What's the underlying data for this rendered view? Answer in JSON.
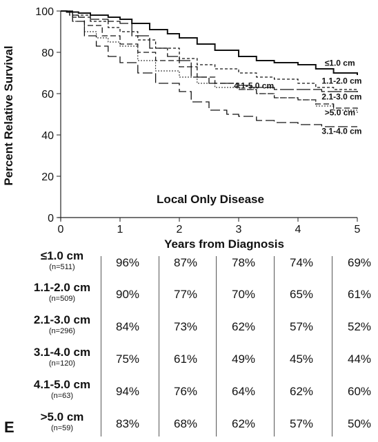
{
  "chart_data": {
    "type": "line",
    "xlabel": "Years from Diagnosis",
    "ylabel": "Percent Relative Survival",
    "annotation": "Local Only Disease",
    "panel_label": "E",
    "xlim": [
      0,
      5
    ],
    "ylim": [
      0,
      100
    ],
    "x_ticks": [
      0,
      1,
      2,
      3,
      4,
      5
    ],
    "y_ticks": [
      0,
      20,
      40,
      60,
      80,
      100
    ],
    "x_tick_labels": [
      "0",
      "1",
      "2",
      "3",
      "4",
      "5"
    ],
    "y_tick_labels": [
      "0",
      "20",
      "40",
      "60",
      "80",
      "100"
    ],
    "series": [
      {
        "name": "≤1.0 cm",
        "dash": "solid",
        "width": 2,
        "points": [
          [
            0,
            100
          ],
          [
            0.1,
            99.5
          ],
          [
            0.3,
            99
          ],
          [
            0.5,
            98
          ],
          [
            0.8,
            97
          ],
          [
            1,
            96
          ],
          [
            1.2,
            94
          ],
          [
            1.5,
            91
          ],
          [
            1.8,
            89
          ],
          [
            2,
            87
          ],
          [
            2.3,
            84
          ],
          [
            2.6,
            81
          ],
          [
            3,
            78
          ],
          [
            3.3,
            76
          ],
          [
            3.6,
            75
          ],
          [
            4,
            74
          ],
          [
            4.3,
            72
          ],
          [
            4.6,
            70
          ],
          [
            5,
            69
          ]
        ]
      },
      {
        "name": "1.1-2.0 cm",
        "dash": "4,3",
        "width": 1.3,
        "points": [
          [
            0,
            100
          ],
          [
            0.2,
            98
          ],
          [
            0.5,
            95
          ],
          [
            0.8,
            92
          ],
          [
            1,
            90
          ],
          [
            1.3,
            86
          ],
          [
            1.6,
            82
          ],
          [
            2,
            77
          ],
          [
            2.3,
            74
          ],
          [
            2.6,
            72
          ],
          [
            3,
            70
          ],
          [
            3.3,
            68
          ],
          [
            3.6,
            67
          ],
          [
            4,
            65
          ],
          [
            4.3,
            63
          ],
          [
            4.6,
            62
          ],
          [
            5,
            61
          ]
        ]
      },
      {
        "name": "2.1-3.0 cm",
        "dash": "8,4",
        "width": 1.3,
        "points": [
          [
            0,
            100
          ],
          [
            0.2,
            97
          ],
          [
            0.4,
            93
          ],
          [
            0.7,
            88
          ],
          [
            1,
            84
          ],
          [
            1.3,
            80
          ],
          [
            1.6,
            76
          ],
          [
            2,
            73
          ],
          [
            2.3,
            68
          ],
          [
            2.6,
            65
          ],
          [
            3,
            62
          ],
          [
            3.3,
            60
          ],
          [
            3.6,
            58
          ],
          [
            4,
            57
          ],
          [
            4.3,
            55
          ],
          [
            4.6,
            53
          ],
          [
            5,
            52
          ]
        ]
      },
      {
        "name": "3.1-4.0 cm",
        "dash": "14,5",
        "width": 1.3,
        "points": [
          [
            0,
            100
          ],
          [
            0.2,
            95
          ],
          [
            0.4,
            88
          ],
          [
            0.6,
            83
          ],
          [
            0.8,
            78
          ],
          [
            1,
            75
          ],
          [
            1.3,
            70
          ],
          [
            1.6,
            65
          ],
          [
            2,
            61
          ],
          [
            2.2,
            56
          ],
          [
            2.5,
            52
          ],
          [
            2.8,
            50
          ],
          [
            3,
            49
          ],
          [
            3.3,
            47
          ],
          [
            3.6,
            46
          ],
          [
            4,
            45
          ],
          [
            4.4,
            44
          ],
          [
            5,
            44
          ]
        ]
      },
      {
        "name": "4.1-5.0 cm",
        "dash": "20,4",
        "width": 1.3,
        "points": [
          [
            0,
            100
          ],
          [
            0.15,
            98
          ],
          [
            0.3,
            97
          ],
          [
            0.5,
            96
          ],
          [
            0.8,
            95
          ],
          [
            1,
            94
          ],
          [
            1.2,
            88
          ],
          [
            1.5,
            82
          ],
          [
            1.8,
            78
          ],
          [
            2,
            76
          ],
          [
            2.2,
            68
          ],
          [
            2.5,
            65
          ],
          [
            3,
            64
          ],
          [
            3.2,
            63
          ],
          [
            3.6,
            62
          ],
          [
            4,
            62
          ],
          [
            4.4,
            61
          ],
          [
            5,
            60
          ]
        ]
      },
      {
        "name": ">5.0 cm",
        "dash": "2,2",
        "width": 1,
        "points": [
          [
            0,
            100
          ],
          [
            0.2,
            95
          ],
          [
            0.4,
            90
          ],
          [
            0.6,
            87
          ],
          [
            0.8,
            85
          ],
          [
            1,
            83
          ],
          [
            1.3,
            76
          ],
          [
            1.6,
            71
          ],
          [
            2,
            68
          ],
          [
            2.3,
            65
          ],
          [
            2.6,
            63
          ],
          [
            3,
            62
          ],
          [
            3.3,
            60
          ],
          [
            3.6,
            58
          ],
          [
            4,
            57
          ],
          [
            4.3,
            54
          ],
          [
            4.6,
            52
          ],
          [
            5,
            50
          ]
        ]
      }
    ],
    "series_labels": [
      {
        "text": "≤1.0 cm",
        "x": 4.45,
        "y": 73.5
      },
      {
        "text": "1.1-2.0 cm",
        "x": 4.4,
        "y": 64.8
      },
      {
        "text": "4.1-5.0 cm",
        "x": 2.92,
        "y": 62.5
      },
      {
        "text": "2.1-3.0 cm",
        "x": 4.4,
        "y": 57.2
      },
      {
        "text": ">5.0 cm",
        "x": 4.45,
        "y": 49.5
      },
      {
        "text": "3.1-4.0 cm",
        "x": 4.4,
        "y": 40.5
      }
    ],
    "table": {
      "rows": [
        {
          "size": "≤1.0 cm",
          "n": "(n=511)",
          "values": [
            "96%",
            "87%",
            "78%",
            "74%",
            "69%"
          ]
        },
        {
          "size": "1.1-2.0 cm",
          "n": "(n=509)",
          "values": [
            "90%",
            "77%",
            "70%",
            "65%",
            "61%"
          ]
        },
        {
          "size": "2.1-3.0 cm",
          "n": "(n=296)",
          "values": [
            "84%",
            "73%",
            "62%",
            "57%",
            "52%"
          ]
        },
        {
          "size": "3.1-4.0 cm",
          "n": "(n=120)",
          "values": [
            "75%",
            "61%",
            "49%",
            "45%",
            "44%"
          ]
        },
        {
          "size": "4.1-5.0 cm",
          "n": "(n=63)",
          "values": [
            "94%",
            "76%",
            "64%",
            "62%",
            "60%"
          ]
        },
        {
          "size": ">5.0 cm",
          "n": "(n=59)",
          "values": [
            "83%",
            "68%",
            "62%",
            "57%",
            "50%"
          ]
        }
      ]
    }
  }
}
